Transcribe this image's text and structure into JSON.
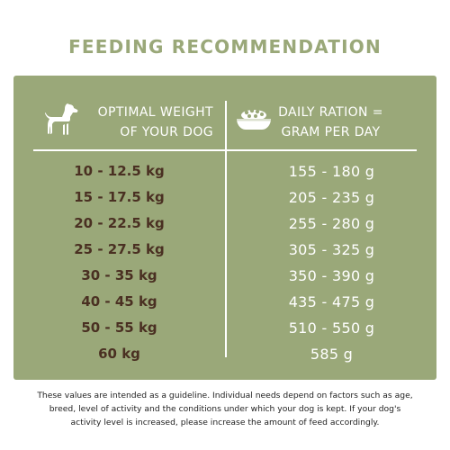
{
  "title": "FEEDING RECOMMENDATION",
  "header": {
    "weight_line1": "OPTIMAL WEIGHT",
    "weight_line2": "OF YOUR DOG",
    "ration_line1": "DAILY RATION =",
    "ration_line2": "GRAM PER DAY",
    "weight_icon": "dog-icon",
    "ration_icon": "food-bowl-icon"
  },
  "rows": [
    {
      "weight": "10 - 12.5 kg",
      "ration": "155 - 180 g"
    },
    {
      "weight": "15 - 17.5 kg",
      "ration": "205 - 235 g"
    },
    {
      "weight": "20 - 22.5 kg",
      "ration": "255 - 280 g"
    },
    {
      "weight": "25 - 27.5 kg",
      "ration": "305 - 325 g"
    },
    {
      "weight": "30 - 35 kg",
      "ration": "350 - 390 g"
    },
    {
      "weight": "40 - 45 kg",
      "ration": "435 - 475 g"
    },
    {
      "weight": "50 - 55 kg",
      "ration": "510 - 550 g"
    },
    {
      "weight": "60 kg",
      "ration": "585 g"
    }
  ],
  "note": {
    "line1": "These values are intended as a guideline. Individual needs depend on factors such as age,",
    "line2": "breed, level of activity and the conditions under which your dog is kept. If your dog's",
    "line3": "activity level is increased, please increase the amount of feed accordingly."
  },
  "colors": {
    "panel": "#9aa879",
    "title": "#9aa879",
    "weight_text": "#4a3022",
    "ration_text": "#ffffff"
  }
}
